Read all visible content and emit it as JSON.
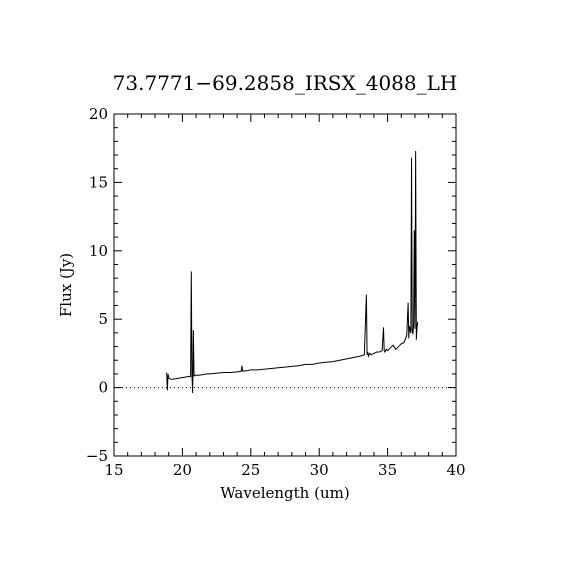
{
  "chart_data": {
    "type": "line",
    "title": "73.7771−69.2858_IRSX_4088_LH",
    "xlabel": "Wavelength (um)",
    "ylabel": "Flux (Jy)",
    "xlim": [
      15,
      40
    ],
    "ylim": [
      -5,
      20
    ],
    "xticks": [
      15,
      20,
      25,
      30,
      35,
      40
    ],
    "xtick_labels": [
      "15",
      "20",
      "25",
      "30",
      "35",
      "40"
    ],
    "yticks": [
      -5,
      0,
      5,
      10,
      15,
      20
    ],
    "ytick_labels": [
      "−5",
      "0",
      "5",
      "10",
      "15",
      "20"
    ],
    "x_minor_step": 1,
    "y_minor_step": 1,
    "grid": false,
    "legend": "none",
    "reference_line": {
      "y": 0,
      "style": "dotted"
    },
    "line_color": "#000000",
    "series": [
      {
        "x": [
          18.85,
          18.9,
          18.95,
          19.0,
          19.2,
          19.5,
          19.8,
          20.1,
          20.4,
          20.6,
          20.65,
          20.7,
          20.75,
          20.8,
          20.85,
          20.9,
          21.2,
          21.5,
          21.8,
          22.0,
          22.5,
          23.0,
          23.5,
          24.0,
          24.3,
          24.35,
          24.4,
          24.8,
          25.0,
          25.5,
          26.0,
          26.5,
          27.0,
          27.5,
          28.0,
          28.5,
          29.0,
          29.5,
          30.0,
          30.5,
          31.0,
          31.5,
          32.0,
          32.5,
          33.0,
          33.3,
          33.45,
          33.5,
          33.55,
          33.6,
          33.7,
          33.8,
          34.0,
          34.2,
          34.4,
          34.6,
          34.7,
          34.75,
          34.8,
          34.9,
          35.0,
          35.2,
          35.4,
          35.6,
          35.8,
          36.0,
          36.2,
          36.4,
          36.5,
          36.55,
          36.6,
          36.7,
          36.75,
          36.8,
          36.85,
          36.9,
          36.95,
          37.0,
          37.05,
          37.1,
          37.15,
          37.2
        ],
        "values": [
          1.1,
          -0.2,
          1.0,
          0.7,
          0.6,
          0.65,
          0.7,
          0.75,
          0.8,
          0.8,
          8.5,
          0.85,
          -0.4,
          4.2,
          0.85,
          0.9,
          0.9,
          0.95,
          1.0,
          1.0,
          1.05,
          1.1,
          1.1,
          1.15,
          1.2,
          1.6,
          1.2,
          1.25,
          1.3,
          1.3,
          1.35,
          1.4,
          1.45,
          1.5,
          1.55,
          1.6,
          1.7,
          1.7,
          1.8,
          1.85,
          1.9,
          2.0,
          2.1,
          2.2,
          2.3,
          2.4,
          6.8,
          2.4,
          2.6,
          2.3,
          2.5,
          2.4,
          2.5,
          2.6,
          2.6,
          2.7,
          4.4,
          2.7,
          2.6,
          2.8,
          2.7,
          2.9,
          3.1,
          2.8,
          3.0,
          3.2,
          3.3,
          3.8,
          6.2,
          3.6,
          4.5,
          4.0,
          16.8,
          4.2,
          3.9,
          4.6,
          11.5,
          4.3,
          17.3,
          3.5,
          4.4,
          4.8
        ]
      }
    ]
  }
}
